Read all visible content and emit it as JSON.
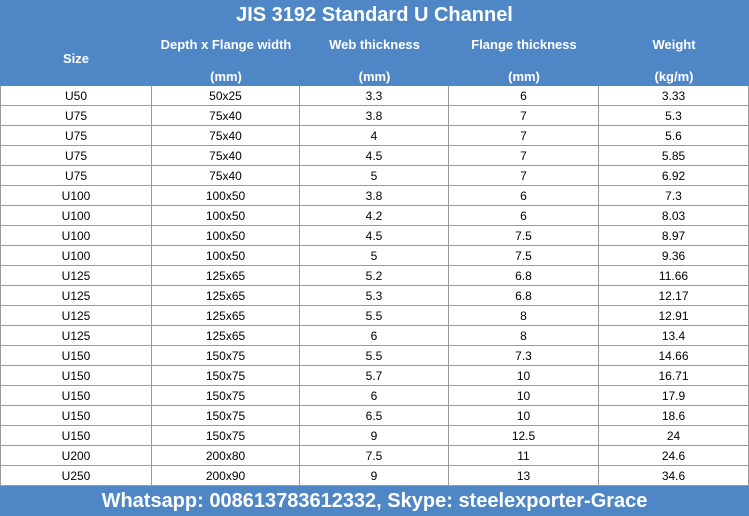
{
  "table": {
    "title": "JIS 3192 Standard U Channel",
    "columns": [
      {
        "name": "Size"
      },
      {
        "name": "Depth x Flange width",
        "unit": "(mm)"
      },
      {
        "name": "Web thickness",
        "unit": "(mm)"
      },
      {
        "name": "Flange thickness",
        "unit": "(mm)"
      },
      {
        "name": "Weight",
        "unit": "(kg/m)"
      }
    ],
    "rows": [
      [
        "U50",
        "50x25",
        "3.3",
        "6",
        "3.33"
      ],
      [
        "U75",
        "75x40",
        "3.8",
        "7",
        "5.3"
      ],
      [
        "U75",
        "75x40",
        "4",
        "7",
        "5.6"
      ],
      [
        "U75",
        "75x40",
        "4.5",
        "7",
        "5.85"
      ],
      [
        "U75",
        "75x40",
        "5",
        "7",
        "6.92"
      ],
      [
        "U100",
        "100x50",
        "3.8",
        "6",
        "7.3"
      ],
      [
        "U100",
        "100x50",
        "4.2",
        "6",
        "8.03"
      ],
      [
        "U100",
        "100x50",
        "4.5",
        "7.5",
        "8.97"
      ],
      [
        "U100",
        "100x50",
        "5",
        "7.5",
        "9.36"
      ],
      [
        "U125",
        "125x65",
        "5.2",
        "6.8",
        "11.66"
      ],
      [
        "U125",
        "125x65",
        "5.3",
        "6.8",
        "12.17"
      ],
      [
        "U125",
        "125x65",
        "5.5",
        "8",
        "12.91"
      ],
      [
        "U125",
        "125x65",
        "6",
        "8",
        "13.4"
      ],
      [
        "U150",
        "150x75",
        "5.5",
        "7.3",
        "14.66"
      ],
      [
        "U150",
        "150x75",
        "5.7",
        "10",
        "16.71"
      ],
      [
        "U150",
        "150x75",
        "6",
        "10",
        "17.9"
      ],
      [
        "U150",
        "150x75",
        "6.5",
        "10",
        "18.6"
      ],
      [
        "U150",
        "150x75",
        "9",
        "12.5",
        "24"
      ],
      [
        "U200",
        "200x80",
        "7.5",
        "11",
        "24.6"
      ],
      [
        "U250",
        "200x90",
        "9",
        "13",
        "34.6"
      ]
    ],
    "footer": "Whatsapp: 008613783612332, Skype: steelexporter-Grace"
  }
}
